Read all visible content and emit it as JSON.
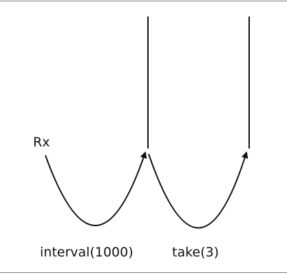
{
  "diagram": {
    "start_label": "Rx",
    "operators": [
      {
        "label": "interval(1000)"
      },
      {
        "label": "take(3)"
      }
    ],
    "colors": {
      "stroke": "#111111",
      "rule": "#7a7a7a",
      "background": "#ffffff"
    }
  }
}
